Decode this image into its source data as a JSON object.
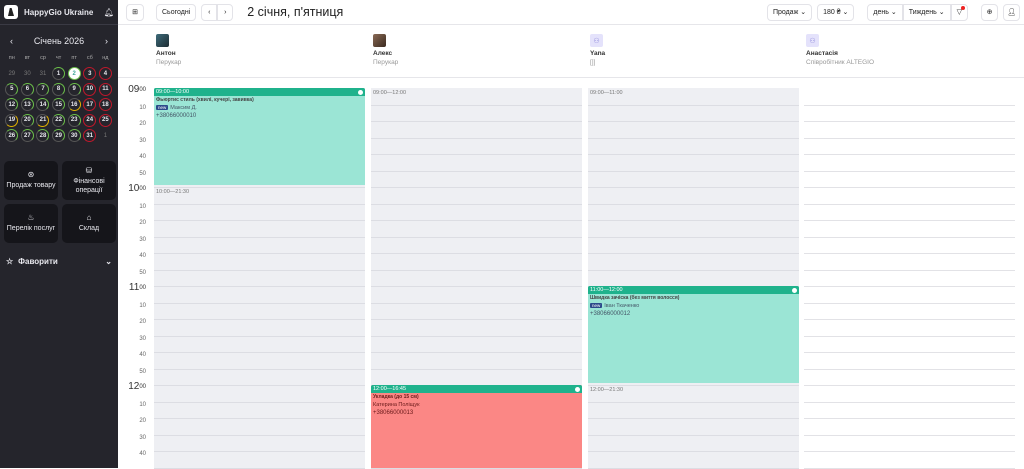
{
  "sidebar": {
    "company": "HappyGio Ukraine",
    "month": "Січень 2026",
    "dow": [
      "пн",
      "вт",
      "ср",
      "чт",
      "пт",
      "сб",
      "нд"
    ],
    "weeks": [
      [
        {
          "d": "29",
          "s": "o"
        },
        {
          "d": "30",
          "s": "o"
        },
        {
          "d": "31",
          "s": "o"
        },
        {
          "d": "1",
          "s": "g"
        },
        {
          "d": "2",
          "s": "today"
        },
        {
          "d": "3",
          "s": "r"
        },
        {
          "d": "4",
          "s": "r"
        }
      ],
      [
        {
          "d": "5",
          "s": "g"
        },
        {
          "d": "6",
          "s": "g"
        },
        {
          "d": "7",
          "s": "g"
        },
        {
          "d": "8",
          "s": "g"
        },
        {
          "d": "9",
          "s": "g"
        },
        {
          "d": "10",
          "s": "r"
        },
        {
          "d": "11",
          "s": "r"
        }
      ],
      [
        {
          "d": "12",
          "s": "g"
        },
        {
          "d": "13",
          "s": "g"
        },
        {
          "d": "14",
          "s": "g"
        },
        {
          "d": "15",
          "s": "g"
        },
        {
          "d": "16",
          "s": "y"
        },
        {
          "d": "17",
          "s": "r"
        },
        {
          "d": "18",
          "s": "r"
        }
      ],
      [
        {
          "d": "19",
          "s": "y"
        },
        {
          "d": "20",
          "s": "g"
        },
        {
          "d": "21",
          "s": "y"
        },
        {
          "d": "22",
          "s": "g"
        },
        {
          "d": "23",
          "s": "g"
        },
        {
          "d": "24",
          "s": "r"
        },
        {
          "d": "25",
          "s": "r"
        }
      ],
      [
        {
          "d": "26",
          "s": "g"
        },
        {
          "d": "27",
          "s": "g"
        },
        {
          "d": "28",
          "s": "g"
        },
        {
          "d": "29",
          "s": "g"
        },
        {
          "d": "30",
          "s": "g"
        },
        {
          "d": "31",
          "s": "r"
        },
        {
          "d": "1",
          "s": "o"
        }
      ]
    ],
    "tiles": [
      {
        "label": "Продаж товару",
        "icon": "sale-icon"
      },
      {
        "label": "Фінансові операції",
        "icon": "finance-icon"
      },
      {
        "label": "Перелік послуг",
        "icon": "services-icon"
      },
      {
        "label": "Склад",
        "icon": "warehouse-icon"
      }
    ],
    "favorites": "Фаворити"
  },
  "toolbar": {
    "today": "Сьогодні",
    "date_title": "2 січня, п'ятниця",
    "sale": "Продаж",
    "price": "180 ₴",
    "scale": "день",
    "period": "Тиждень"
  },
  "staff": [
    {
      "name": "Антон",
      "role": "Перукар"
    },
    {
      "name": "Алекс",
      "role": "Перукар"
    },
    {
      "name": "Yana",
      "role": "[]]"
    },
    {
      "name": "Анастасія",
      "role": "Співробітник ALTEGIO"
    }
  ],
  "times": {
    "hours": [
      "09",
      "10",
      "11",
      "12"
    ],
    "minutes": [
      "00",
      "10",
      "20",
      "30",
      "40",
      "50"
    ]
  },
  "schedule": [
    {
      "free": [
        {
          "label": "10:00—21:30",
          "start": 10
        }
      ],
      "events": [
        {
          "time": "09:00—10:00",
          "start": 9,
          "end": 10,
          "service": "Фьюртис стиль (хвилі, кучері, завивка)",
          "client": "Максим Д.",
          "new": true,
          "phone": "+38066000010",
          "color": "tq"
        }
      ]
    },
    {
      "free": [
        {
          "label": "09:00—12:00",
          "start": 9
        }
      ],
      "events": [
        {
          "time": "12:00—16:45",
          "start": 12,
          "end": 16.75,
          "service": "Укладка (до 15 см)",
          "client": "Катерина Поліщук",
          "new": false,
          "phone": "+38066000013",
          "color": "rd"
        }
      ]
    },
    {
      "free": [
        {
          "label": "09:00—11:00",
          "start": 9
        },
        {
          "label": "12:00—21:30",
          "start": 12
        }
      ],
      "events": [
        {
          "time": "11:00—12:00",
          "start": 11,
          "end": 12,
          "service": "Швидка зачіска (без миття волосся)",
          "client": "Іван Ткаченко",
          "new": true,
          "phone": "+38066000012",
          "color": "tq"
        }
      ]
    },
    {
      "free": [],
      "events": []
    }
  ],
  "new_badge": "new"
}
